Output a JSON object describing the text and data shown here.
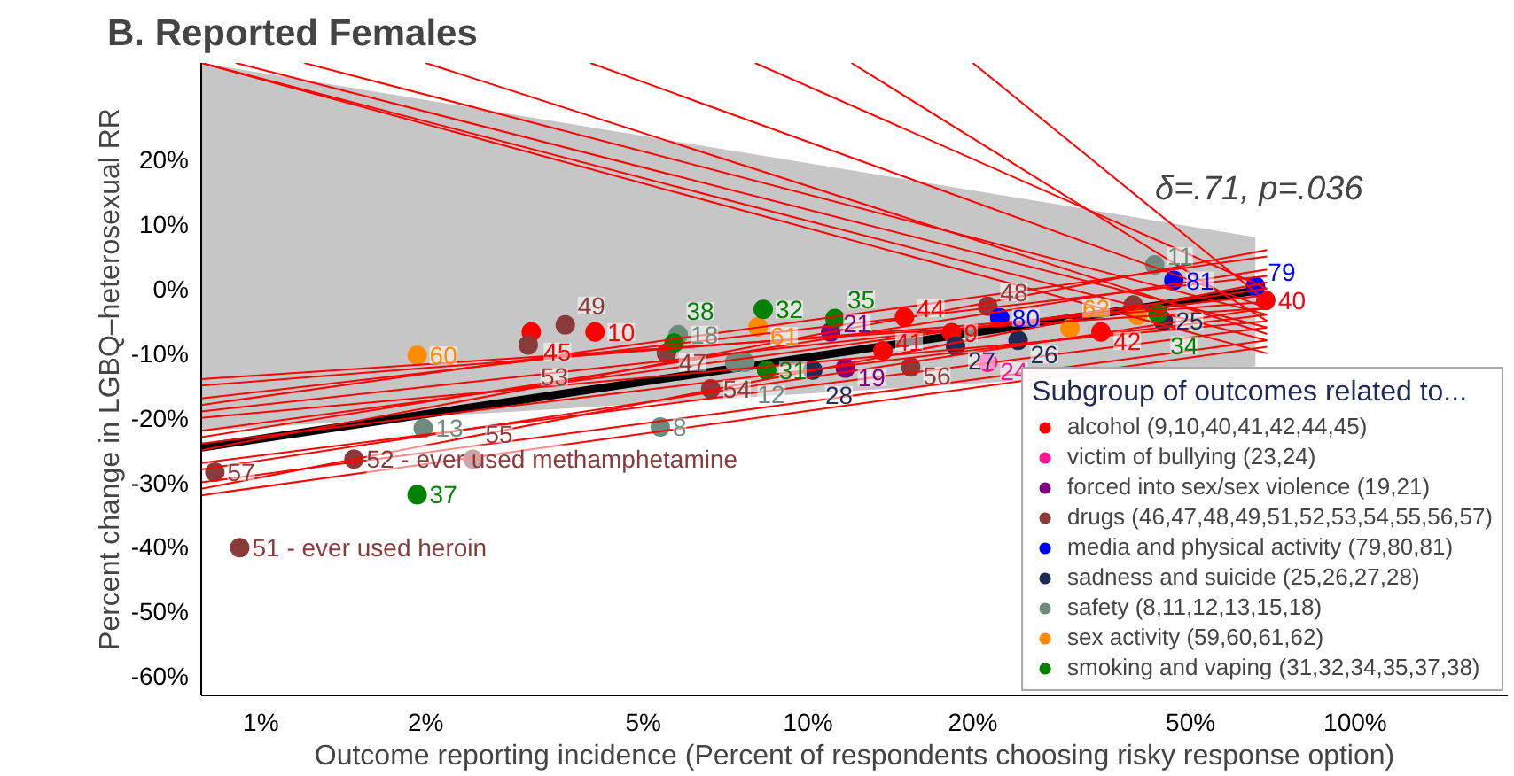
{
  "chart_data": {
    "type": "scatter",
    "title": "B. Reported Females",
    "xlabel": "Outcome reporting incidence (Percent of respondents choosing risky response option)",
    "ylabel": "Percent change in LGBQ–heterosexual RR",
    "legend_title": "Subgroup of outcomes related to...",
    "annotations": [
      "δ=.71, p=.036",
      {
        "text": "9",
        "x": 18.3,
        "y": -6.8
      },
      {
        "text": "10",
        "x": 4.08,
        "y": -6.7
      },
      {
        "text": "40",
        "x": 68.6,
        "y": -1.8
      },
      {
        "text": "41",
        "x": 13.7,
        "y": -9.6
      },
      {
        "text": "42",
        "x": 34.3,
        "y": -6.7
      },
      {
        "text": "44",
        "x": 15.0,
        "y": -4.4
      },
      {
        "text": "45",
        "x": 3.12,
        "y": -6.7
      },
      {
        "text": "24",
        "x": 21.3,
        "y": -11.4
      },
      {
        "text": "19",
        "x": 11.7,
        "y": -12.3
      },
      {
        "text": "21",
        "x": 11.0,
        "y": -6.7
      },
      {
        "text": "47",
        "x": 5.51,
        "y": -10.0
      },
      {
        "text": "48",
        "x": 21.3,
        "y": -2.7
      },
      {
        "text": "49",
        "x": 3.6,
        "y": -5.6
      },
      {
        "text": "51 - ever used heroin",
        "x": 0.915,
        "y": -40.1
      },
      {
        "text": "52 - ever used methamphetamine",
        "x": 1.48,
        "y": -26.4
      },
      {
        "text": "53",
        "x": 3.08,
        "y": -8.7
      },
      {
        "text": "54",
        "x": 6.64,
        "y": -15.5
      },
      {
        "text": "55",
        "x": 2.44,
        "y": -26.4
      },
      {
        "text": "56",
        "x": 15.4,
        "y": -12.1
      },
      {
        "text": "57",
        "x": 0.824,
        "y": -28.4
      },
      {
        "text": "79",
        "x": 65.7,
        "y": 0.4
      },
      {
        "text": "80",
        "x": 22.4,
        "y": -4.5
      },
      {
        "text": "81",
        "x": 46.6,
        "y": 1.3
      },
      {
        "text": "25",
        "x": 44.6,
        "y": -5.0
      },
      {
        "text": "26",
        "x": 24.2,
        "y": -8.0
      },
      {
        "text": "27",
        "x": 18.6,
        "y": -8.9
      },
      {
        "text": "28",
        "x": 10.2,
        "y": -12.6
      },
      {
        "text": "8",
        "x": 5.37,
        "y": -21.4
      },
      {
        "text": "11",
        "x": 43.0,
        "y": 3.7
      },
      {
        "text": "12",
        "x": 7.67,
        "y": -11.4
      },
      {
        "text": "13",
        "x": 1.98,
        "y": -21.6
      },
      {
        "text": "18",
        "x": 5.79,
        "y": -7.1
      },
      {
        "text": "60",
        "x": 1.93,
        "y": -10.3
      },
      {
        "text": "61",
        "x": 8.1,
        "y": -5.9
      },
      {
        "text": "62",
        "x": 30.1,
        "y": -6.1
      },
      {
        "text": "31",
        "x": 8.4,
        "y": -12.6
      },
      {
        "text": "32",
        "x": 8.28,
        "y": -3.2
      },
      {
        "text": "34",
        "x": 43.6,
        "y": -3.8
      },
      {
        "text": "35",
        "x": 11.2,
        "y": -4.6
      },
      {
        "text": "37",
        "x": 1.93,
        "y": -31.9
      },
      {
        "text": "38",
        "x": 5.69,
        "y": -8.4
      }
    ],
    "log": "x",
    "xlim": [
      0.778,
      190
    ],
    "ylim": [
      -63,
      35
    ],
    "xticks": [
      {
        "value": 1,
        "label": "1%"
      },
      {
        "value": 2,
        "label": "2%"
      },
      {
        "value": 5,
        "label": "5%"
      },
      {
        "value": 10,
        "label": "10%"
      },
      {
        "value": 20,
        "label": "20%"
      },
      {
        "value": 50,
        "label": "50%"
      },
      {
        "value": 100,
        "label": "100%"
      }
    ],
    "yticks": [
      {
        "value": 20,
        "label": "20%"
      },
      {
        "value": 10,
        "label": "10%"
      },
      {
        "value": 0,
        "label": "0%"
      },
      {
        "value": -10,
        "label": "-10%"
      },
      {
        "value": -20,
        "label": "-20%"
      },
      {
        "value": -30,
        "label": "-30%"
      },
      {
        "value": -40,
        "label": "-40%"
      },
      {
        "value": -50,
        "label": "-50%"
      },
      {
        "value": -60,
        "label": "-60%"
      }
    ],
    "grid": false,
    "legend": "bottom right",
    "series": [
      {
        "type": "line",
        "color": "#000000",
        "x": [
          0.778,
          65.7
        ],
        "values": [
          -24.6,
          -0.3
        ],
        "lower": [
          -22,
          -12
        ],
        "upper": [
          35,
          8
        ]
      },
      {
        "type": "line",
        "color": "#ff0000",
        "x": [
          0.778,
          69
        ],
        "values": [
          -14,
          -3
        ]
      },
      {
        "type": "line",
        "color": "#ff0000",
        "x": [
          0.778,
          69
        ],
        "values": [
          -15,
          -2
        ]
      },
      {
        "type": "line",
        "color": "#ff0000",
        "x": [
          0.778,
          69
        ],
        "values": [
          -17,
          2
        ]
      },
      {
        "type": "line",
        "color": "#ff0000",
        "x": [
          0.778,
          69
        ],
        "values": [
          -18,
          5
        ]
      },
      {
        "type": "line",
        "color": "#ff0000",
        "x": [
          0.778,
          69
        ],
        "values": [
          -19,
          -1
        ]
      },
      {
        "type": "line",
        "color": "#ff0000",
        "x": [
          0.778,
          69
        ],
        "values": [
          -20,
          -5
        ]
      },
      {
        "type": "line",
        "color": "#ff0000",
        "x": [
          0.778,
          69
        ],
        "values": [
          -22,
          0
        ]
      },
      {
        "type": "line",
        "color": "#ff0000",
        "x": [
          0.778,
          69
        ],
        "values": [
          -23,
          3
        ]
      },
      {
        "type": "line",
        "color": "#ff0000",
        "x": [
          0.778,
          69
        ],
        "values": [
          -24,
          -4
        ]
      },
      {
        "type": "line",
        "color": "#ff0000",
        "x": [
          0.778,
          69
        ],
        "values": [
          -25,
          6
        ]
      },
      {
        "type": "line",
        "color": "#ff0000",
        "x": [
          0.778,
          69
        ],
        "values": [
          -27,
          -6
        ]
      },
      {
        "type": "line",
        "color": "#ff0000",
        "x": [
          0.778,
          69
        ],
        "values": [
          -28,
          -3
        ]
      },
      {
        "type": "line",
        "color": "#ff0000",
        "x": [
          0.778,
          69
        ],
        "values": [
          -30,
          -8
        ]
      },
      {
        "type": "line",
        "color": "#ff0000",
        "x": [
          0.778,
          69
        ],
        "values": [
          -31,
          1
        ]
      },
      {
        "type": "line",
        "color": "#ff0000",
        "x": [
          0.778,
          69
        ],
        "values": [
          -32,
          -9
        ]
      },
      {
        "type": "line",
        "color": "#ff0000",
        "x": [
          0.778,
          69
        ],
        "values": [
          35,
          -10
        ]
      },
      {
        "type": "line",
        "color": "#ff0000",
        "x": [
          0.778,
          69
        ],
        "values": [
          35,
          -8
        ]
      },
      {
        "type": "line",
        "color": "#ff0000",
        "x": [
          0.9,
          69
        ],
        "values": [
          35,
          -6
        ]
      },
      {
        "type": "line",
        "color": "#ff0000",
        "x": [
          1.2,
          69
        ],
        "values": [
          35,
          -4
        ]
      },
      {
        "type": "line",
        "color": "#ff0000",
        "x": [
          2,
          69
        ],
        "values": [
          35,
          -7
        ]
      },
      {
        "type": "line",
        "color": "#ff0000",
        "x": [
          4,
          69
        ],
        "values": [
          35,
          -3
        ]
      },
      {
        "type": "line",
        "color": "#ff0000",
        "x": [
          8,
          69
        ],
        "values": [
          35,
          0
        ]
      },
      {
        "type": "line",
        "color": "#ff0000",
        "x": [
          12,
          69
        ],
        "values": [
          35,
          -5
        ]
      },
      {
        "type": "line",
        "color": "#ff0000",
        "x": [
          20,
          69
        ],
        "values": [
          35,
          -2
        ]
      },
      {
        "marker": "circle",
        "name": "alcohol (9,10,40,41,42,44,45)",
        "color": "#ff0000",
        "x": [
          18.3,
          4.08,
          68.6,
          13.7,
          34.3,
          15.0,
          3.12
        ],
        "values": [
          -6.8,
          -6.7,
          -1.8,
          -9.6,
          -6.7,
          -4.4,
          -6.7
        ]
      },
      {
        "marker": "circle",
        "name": "victim of bullying (23,24)",
        "color": "#ff1493",
        "x": [
          21.3
        ],
        "values": [
          -11.4
        ]
      },
      {
        "marker": "circle",
        "name": "forced into sex/sex violence (19,21)",
        "color": "#800080",
        "x": [
          11.7,
          11.0
        ],
        "values": [
          -12.3,
          -6.7
        ]
      },
      {
        "marker": "circle",
        "name": "drugs (46,47,48,49,51,52,53,54,55,56,57)",
        "color": "#8b3a3a",
        "x": [
          39.3,
          5.51,
          21.3,
          3.6,
          0.915,
          1.48,
          3.08,
          6.64,
          2.44,
          15.4,
          0.824
        ],
        "values": [
          -2.5,
          -10.0,
          -2.7,
          -5.6,
          -40.1,
          -26.4,
          -8.7,
          -15.5,
          -26.4,
          -12.1,
          -28.4
        ]
      },
      {
        "marker": "circle",
        "name": "media and physical activity (79,80,81)",
        "color": "#0000ff",
        "x": [
          65.7,
          22.4,
          46.6
        ],
        "values": [
          0.4,
          -4.5,
          1.3
        ]
      },
      {
        "marker": "circle",
        "name": "sadness and suicide (25,26,27,28)",
        "color": "#1f2a55",
        "x": [
          44.6,
          24.2,
          18.6,
          10.2
        ],
        "values": [
          -5.0,
          -8.0,
          -8.9,
          -12.6
        ]
      },
      {
        "marker": "circle",
        "name": "safety (8,11,12,13,15,18)",
        "color": "#6e8b7d",
        "x": [
          5.37,
          43.0,
          7.67,
          1.98,
          7.34,
          5.79
        ],
        "values": [
          -21.4,
          3.7,
          -11.4,
          -21.6,
          -11.4,
          -7.1
        ]
      },
      {
        "marker": "circle",
        "name": "sex activity (59,60,61,62)",
        "color": "#ff8c00",
        "x": [
          40.0,
          1.93,
          8.1,
          30.1
        ],
        "values": [
          -4.1,
          -10.3,
          -5.9,
          -6.1
        ]
      },
      {
        "marker": "circle",
        "name": "smoking and vaping (31,32,34,35,37,38)",
        "color": "#008000",
        "x": [
          8.4,
          8.28,
          43.6,
          11.2,
          1.93,
          5.69
        ],
        "values": [
          -12.6,
          -3.2,
          -3.8,
          -4.6,
          -31.9,
          -8.4
        ]
      }
    ]
  }
}
